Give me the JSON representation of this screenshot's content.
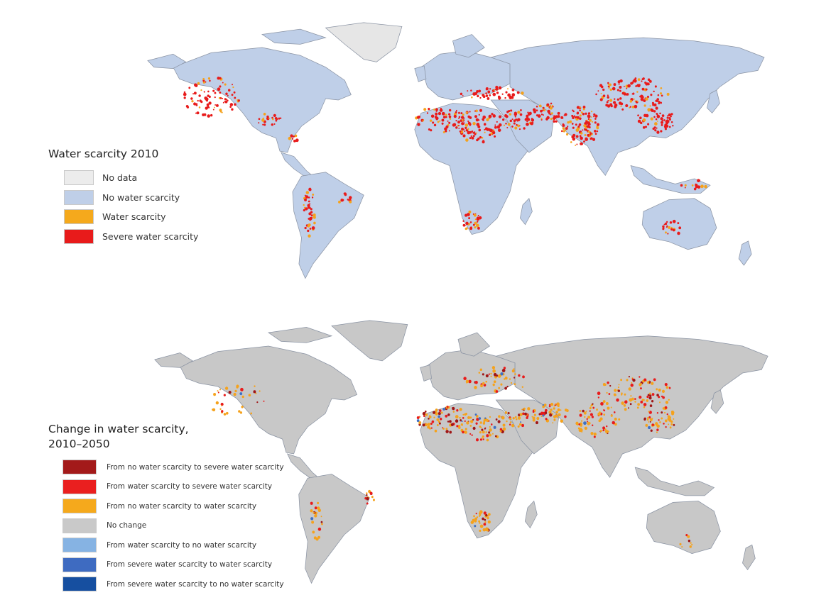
{
  "maps": [
    {
      "id": "top",
      "title": "Water scarcity 2010",
      "land_color": "#bfcfe8",
      "ocean_color": "#ffffff",
      "greenland_color": "#e6e6e6",
      "hotspot_colors": [
        "#e81b1b",
        "#f5a21c"
      ],
      "legend": [
        {
          "label": "No data",
          "color": "#ececec"
        },
        {
          "label": "No water scarcity",
          "color": "#bfcfe8"
        },
        {
          "label": "Water scarcity",
          "color": "#f5a91c"
        },
        {
          "label": "Severe water scarcity",
          "color": "#e81b1b"
        }
      ]
    },
    {
      "id": "bottom",
      "title": "Change in water scarcity,\n2010–2050",
      "land_color": "#c8c8c8",
      "ocean_color": "#ffffff",
      "greenland_color": "#c8c8c8",
      "hotspot_colors": [
        "#f5a21c",
        "#e81b1b",
        "#a01616",
        "#3e70c4"
      ],
      "legend": [
        {
          "label": "From no water scarcity to severe water scarcity",
          "color": "#a31a1a"
        },
        {
          "label": "From water scarcity to severe water scarcity",
          "color": "#ea1f1f"
        },
        {
          "label": "From no water scarcity to water scarcity",
          "color": "#f5a91c"
        },
        {
          "label": "No change",
          "color": "#c9c9c9"
        },
        {
          "label": "From water scarcity to no water scarcity",
          "color": "#86b3e3"
        },
        {
          "label": "From severe water scarcity to water scarcity",
          "color": "#3e6bc1"
        },
        {
          "label": "From severe water scarcity to no water scarcity",
          "color": "#164fa0"
        }
      ]
    }
  ]
}
